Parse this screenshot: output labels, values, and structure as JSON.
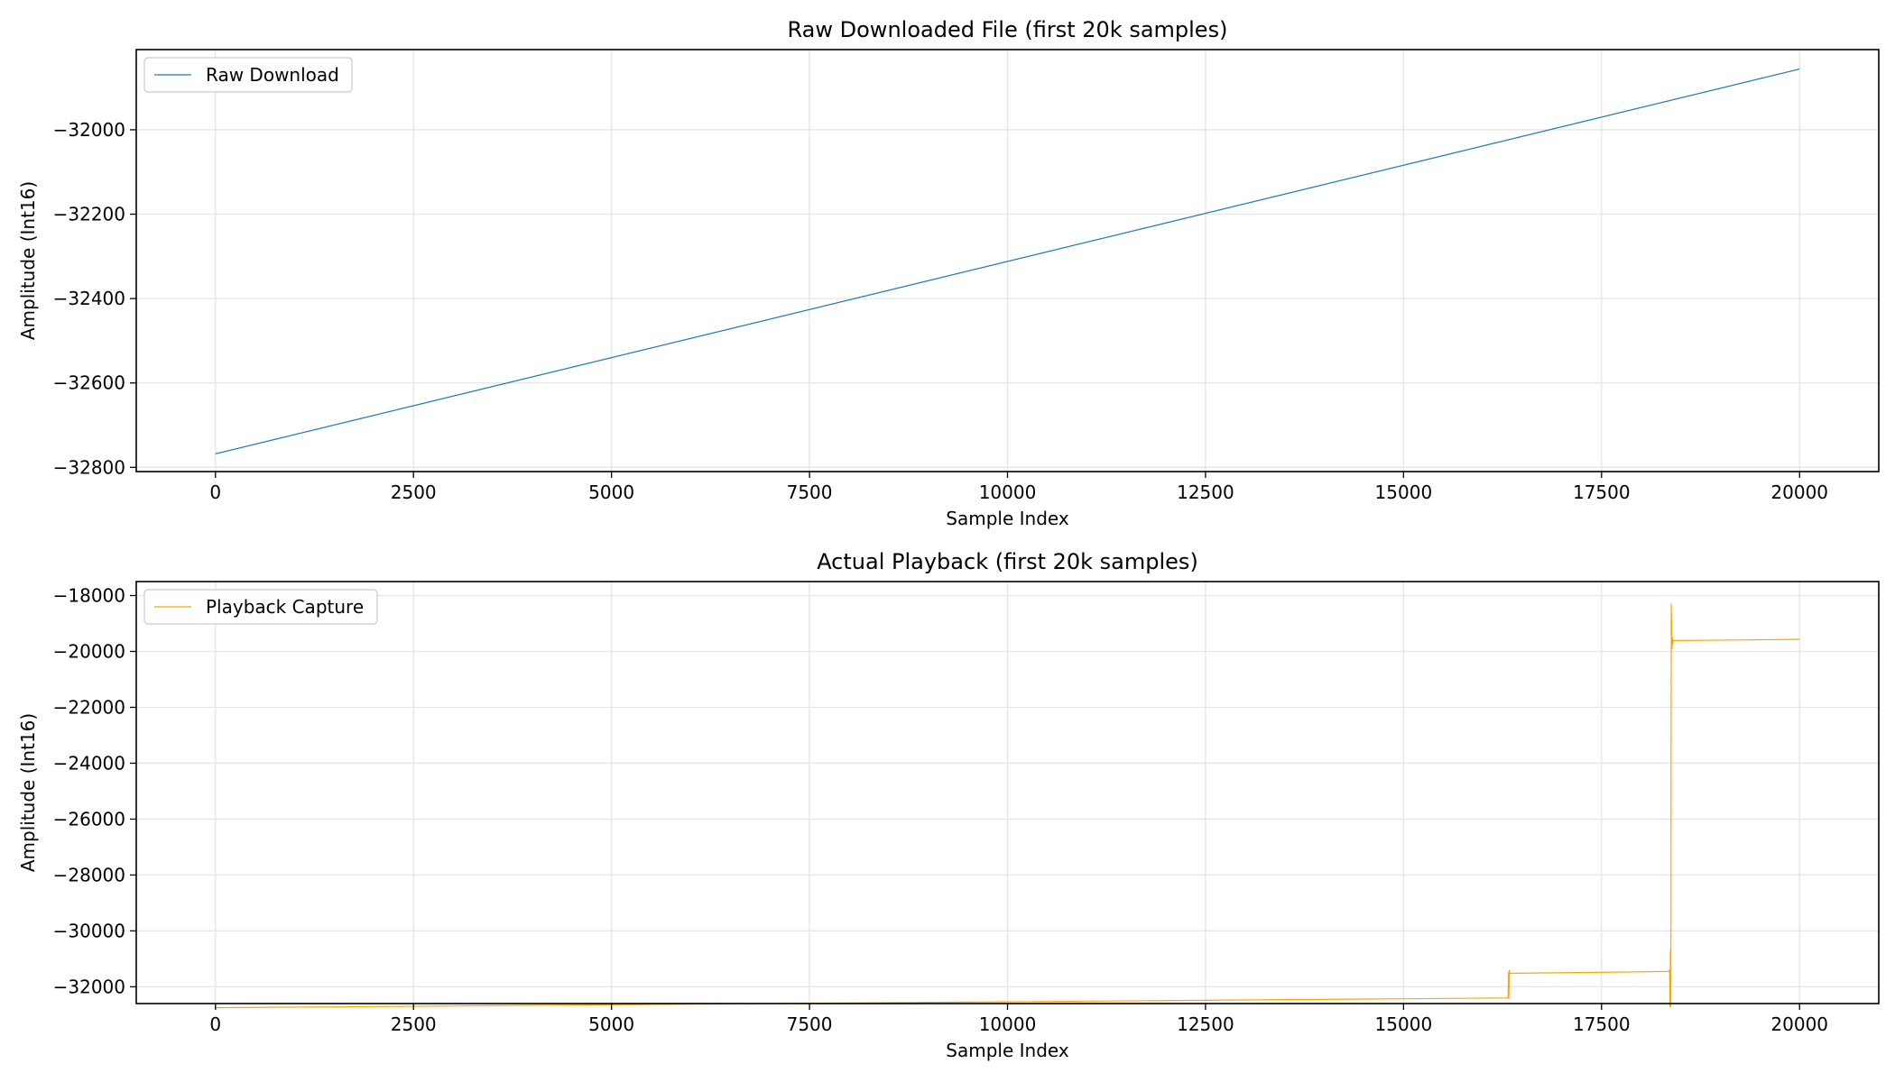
{
  "chart_data": [
    {
      "type": "line",
      "title": "Raw Downloaded File (first 20k samples)",
      "xlabel": "Sample Index",
      "ylabel": "Amplitude (Int16)",
      "xlim": [
        -1000,
        21000
      ],
      "ylim": [
        -32810,
        -31810
      ],
      "xticks": [
        0,
        2500,
        5000,
        7500,
        10000,
        12500,
        15000,
        17500,
        20000
      ],
      "yticks": [
        -32800,
        -32600,
        -32400,
        -32200,
        -32000
      ],
      "ytick_labels": [
        "−32800",
        "−32600",
        "−32400",
        "−32200",
        "−32000"
      ],
      "grid": true,
      "legend_position": "top-left",
      "series": [
        {
          "name": "Raw Download",
          "color": "#1f77b4",
          "x": [
            0,
            20000
          ],
          "y": [
            -32768,
            -31856
          ]
        }
      ]
    },
    {
      "type": "line",
      "title": "Actual Playback (first 20k samples)",
      "xlabel": "Sample Index",
      "ylabel": "Amplitude (Int16)",
      "xlim": [
        -1000,
        21000
      ],
      "ylim": [
        -32600,
        -17500
      ],
      "xticks": [
        0,
        2500,
        5000,
        7500,
        10000,
        12500,
        15000,
        17500,
        20000
      ],
      "yticks": [
        -32000,
        -30000,
        -28000,
        -26000,
        -24000,
        -22000,
        -20000,
        -18000
      ],
      "ytick_labels": [
        "−32000",
        "−30000",
        "−28000",
        "−26000",
        "−24000",
        "−22000",
        "−20000",
        "−18000"
      ],
      "grid": true,
      "legend_position": "top-left",
      "series": [
        {
          "name": "Playback Capture",
          "color": "#ffa500",
          "x": [
            0,
            16320,
            16325,
            16330,
            16335,
            16340,
            18350,
            18360,
            18365,
            18370,
            18375,
            18380,
            18390,
            18395,
            18400,
            18410,
            18420,
            20000
          ],
          "y": [
            -32750,
            -32400,
            -31500,
            -32400,
            -31400,
            -31520,
            -31450,
            -31400,
            -32700,
            -30700,
            -32700,
            -18300,
            -19900,
            -19500,
            -19700,
            -19600,
            -19610,
            -19570
          ]
        }
      ]
    }
  ]
}
